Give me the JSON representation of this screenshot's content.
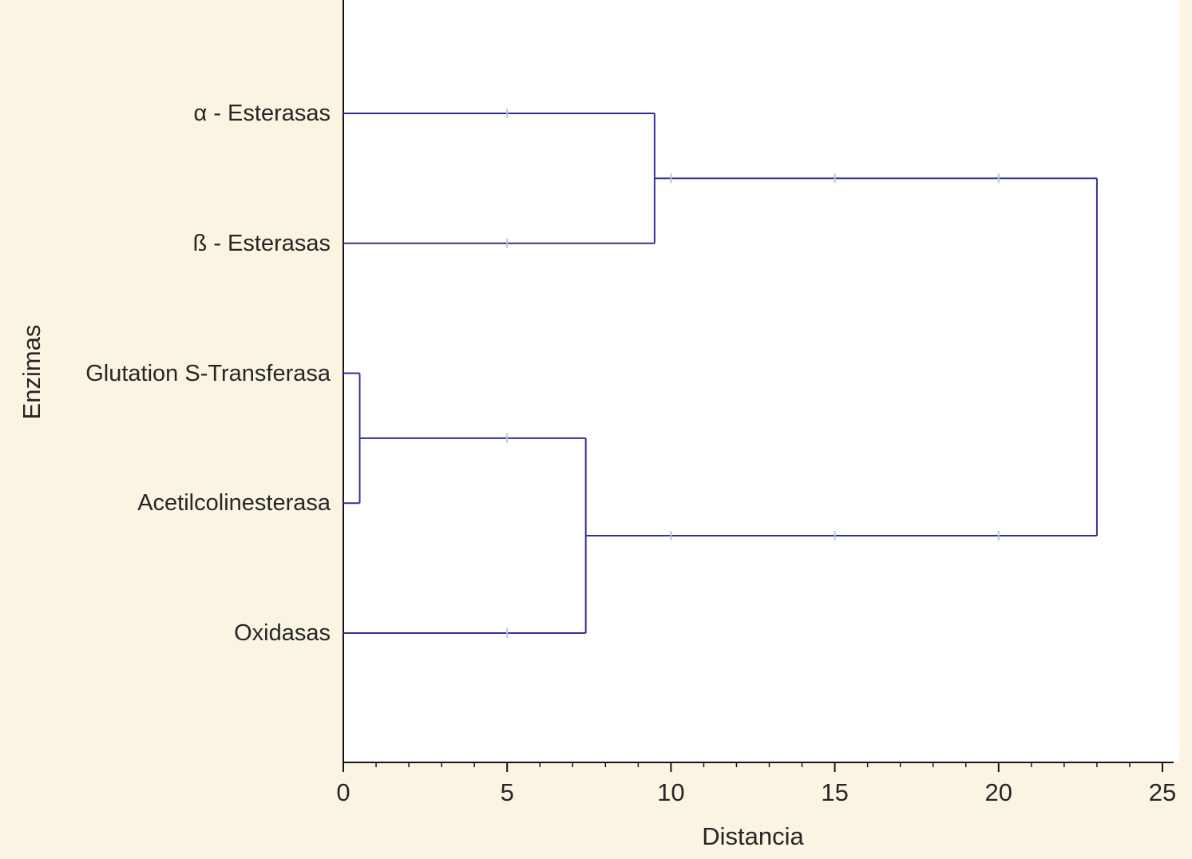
{
  "chart_data": {
    "type": "dendrogram",
    "orientation": "horizontal",
    "title": "",
    "xlabel": "Distancia",
    "ylabel": "Enzimas",
    "xlim": [
      0,
      25
    ],
    "x_major_ticks": [
      0,
      5,
      10,
      15,
      20,
      25
    ],
    "x_minor_tick_step": 1,
    "grid": false,
    "legend": false,
    "leaves": [
      "α - Esterasas",
      "ß - Esterasas",
      "Glutation S-Transferasa",
      "Acetilcolinesterasa",
      "Oxidasas"
    ],
    "merges": [
      {
        "left": "L2",
        "right": "L3",
        "distance": 0.5
      },
      {
        "left": "M0",
        "right": "L4",
        "distance": 7.4
      },
      {
        "left": "L0",
        "right": "L1",
        "distance": 9.5
      },
      {
        "left": "M2",
        "right": "M1",
        "distance": 23.0
      }
    ]
  },
  "colors": {
    "background": "#fbf4e2",
    "plot_background": "#ffffff",
    "dendrogram_line": "#30309a",
    "axis_line": "#161616",
    "text": "#262626",
    "faint_tick": "#b9c4da"
  }
}
